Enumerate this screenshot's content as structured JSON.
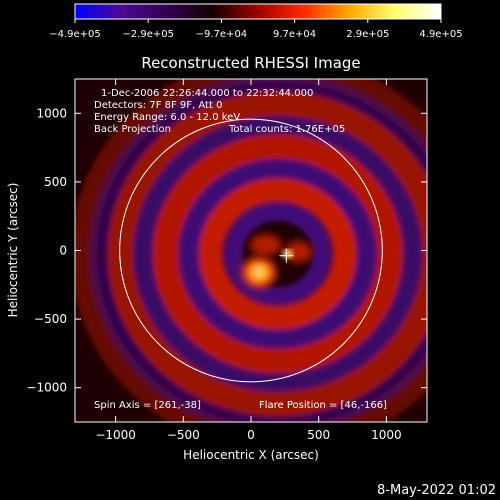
{
  "chart_data": {
    "type": "heatmap",
    "title": "Reconstructed RHESSI Image",
    "xlabel": "Heliocentric X (arcsec)",
    "ylabel": "Heliocentric Y (arcsec)",
    "xlim": [
      -1300,
      1300
    ],
    "ylim": [
      -1250,
      1250
    ],
    "x_ticks": [
      -1000,
      -500,
      0,
      500,
      1000
    ],
    "x_tick_labels": [
      "−1000",
      "−500",
      "0",
      "500",
      "1000"
    ],
    "y_ticks": [
      -1000,
      -500,
      0,
      500,
      1000
    ],
    "y_tick_labels": [
      "−1000",
      "−500",
      "0",
      "500",
      "1000"
    ],
    "colorbar": {
      "tick_labels": [
        "−4.9e+05",
        "−2.9e+05",
        "−9.7e+04",
        "9.7e+04",
        "2.9e+05",
        "4.9e+05"
      ],
      "range": [
        -490000,
        490000
      ],
      "colors": [
        "#0000ff",
        "#4b0a96",
        "#32004f",
        "#140000",
        "#a00000",
        "#ff2a00",
        "#ffaa00",
        "#ffff70",
        "#ffffff"
      ]
    },
    "annotations": [
      "1-Dec-2006 22:26:44.000 to 22:32:44.000",
      "Detectors: 7F 8F 9F, Att 0",
      "Energy Range: 6.0 - 12.0 keV",
      "Back Projection",
      "Total counts: 1.76E+05"
    ],
    "spin_axis_label": "Spin Axis = [261,-38]",
    "flare_position_label": "Flare Position = [46,-166]",
    "spin_axis": [
      261,
      -38
    ],
    "flare_position": [
      46,
      -166
    ],
    "solar_disk_radius": 970,
    "bright_source": [
      272,
      -25
    ],
    "secondary_source": [
      60,
      -160
    ]
  },
  "footer": {
    "date": "8-May-2022 01:02"
  }
}
